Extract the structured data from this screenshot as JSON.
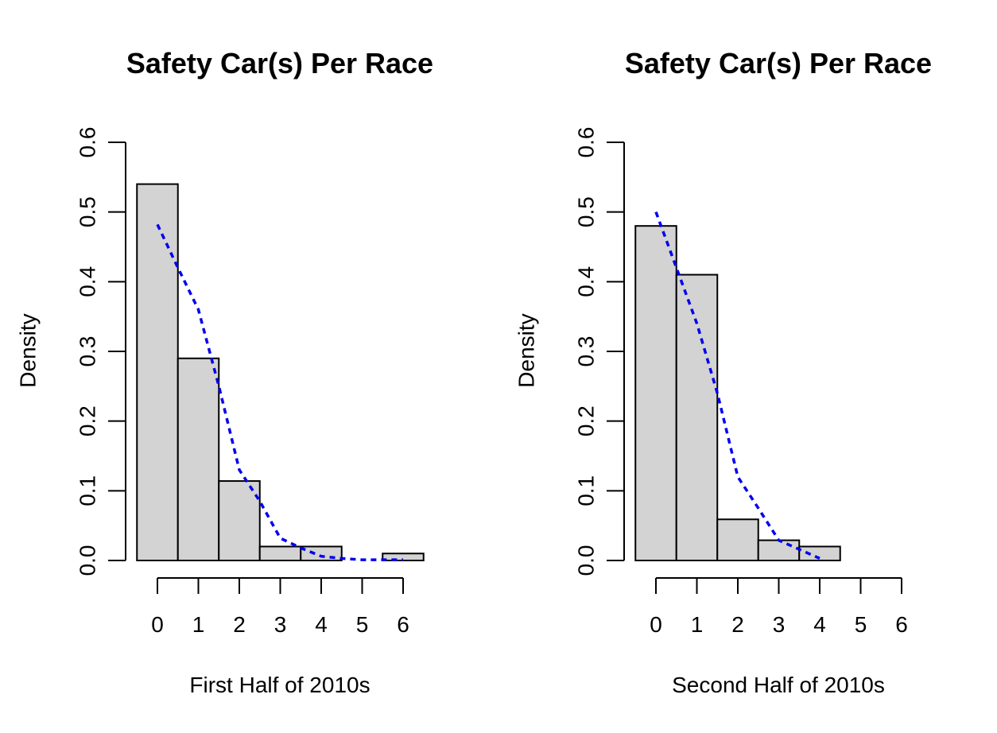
{
  "chart_data": [
    {
      "type": "bar",
      "title": "Safety Car(s) Per Race",
      "xlabel": "First Half of 2010s",
      "ylabel": "Density",
      "xlim": [
        0,
        6
      ],
      "ylim": [
        0,
        0.6
      ],
      "xticks": [
        "0",
        "1",
        "2",
        "3",
        "4",
        "5",
        "6"
      ],
      "yticks": [
        "0.0",
        "0.1",
        "0.2",
        "0.3",
        "0.4",
        "0.5",
        "0.6"
      ],
      "grid": false,
      "bar_color": "#d3d3d3",
      "categories": [
        0,
        1,
        2,
        3,
        4,
        5,
        6
      ],
      "values": [
        0.54,
        0.29,
        0.114,
        0.02,
        0.02,
        0,
        0.01
      ],
      "density_line": {
        "color": "#0000ee",
        "style": "dotted",
        "x": [
          0,
          0.5,
          1,
          1.5,
          2,
          2.5,
          3,
          3.5,
          4,
          4.5,
          5,
          5.5,
          6
        ],
        "y": [
          0.482,
          0.42,
          0.36,
          0.25,
          0.13,
          0.085,
          0.032,
          0.018,
          0.006,
          0.003,
          0.001,
          0.001,
          0.001
        ]
      }
    },
    {
      "type": "bar",
      "title": "Safety Car(s) Per Race",
      "xlabel": "Second Half of 2010s",
      "ylabel": "Density",
      "xlim": [
        0,
        6
      ],
      "ylim": [
        0,
        0.6
      ],
      "xticks": [
        "0",
        "1",
        "2",
        "3",
        "4",
        "5",
        "6"
      ],
      "yticks": [
        "0.0",
        "0.1",
        "0.2",
        "0.3",
        "0.4",
        "0.5",
        "0.6"
      ],
      "grid": false,
      "bar_color": "#d3d3d3",
      "categories": [
        0,
        1,
        2,
        3,
        4
      ],
      "values": [
        0.48,
        0.41,
        0.059,
        0.029,
        0.02
      ],
      "density_line": {
        "color": "#0000ee",
        "style": "dotted",
        "x": [
          0,
          0.5,
          1,
          1.5,
          2,
          2.5,
          3,
          3.5,
          4
        ],
        "y": [
          0.5,
          0.42,
          0.34,
          0.24,
          0.12,
          0.075,
          0.029,
          0.016,
          0.003
        ]
      }
    }
  ]
}
